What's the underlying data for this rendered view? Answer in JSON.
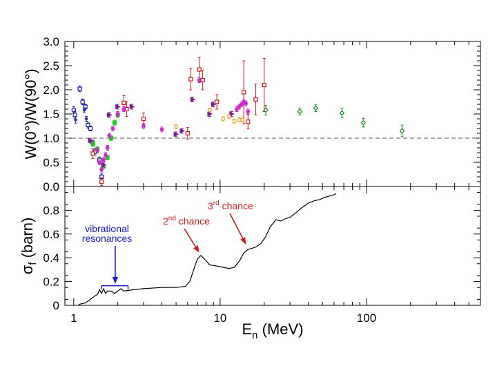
{
  "chart_data": [
    {
      "type": "scatter",
      "panel": "top",
      "xscale": "log",
      "xlim": [
        0.87,
        600
      ],
      "ylim": [
        0,
        3.0
      ],
      "ylabel": "W(0°)/W(90°)",
      "yticks": [
        {
          "value": 0.0,
          "label": "0.0"
        },
        {
          "value": 0.5,
          "label": "0.5"
        },
        {
          "value": 1.0,
          "label": "1.0"
        },
        {
          "value": 1.5,
          "label": "1.5"
        },
        {
          "value": 2.0,
          "label": "2.0"
        },
        {
          "value": 2.5,
          "label": "2.5"
        },
        {
          "value": 3.0,
          "label": "3.0"
        }
      ],
      "reference_line": {
        "y": 1.0,
        "style": "dashed"
      },
      "series": [
        {
          "name": "blue-squares",
          "color": "#1a1aa8",
          "marker": "square",
          "points": [
            {
              "x": 1.0,
              "y": 1.58,
              "err": 0.07
            },
            {
              "x": 1.02,
              "y": 1.48,
              "err": 0.08
            },
            {
              "x": 1.1,
              "y": 2.02,
              "err": 0.06
            },
            {
              "x": 1.15,
              "y": 1.75,
              "err": 0.06
            },
            {
              "x": 1.2,
              "y": 1.65,
              "err": 0.05
            },
            {
              "x": 1.25,
              "y": 1.27,
              "err": 0.06
            },
            {
              "x": 1.3,
              "y": 1.2,
              "err": 0.05
            },
            {
              "x": 1.35,
              "y": 0.9,
              "err": 0.06
            },
            {
              "x": 1.4,
              "y": 0.72,
              "err": 0.07
            },
            {
              "x": 1.5,
              "y": 0.55,
              "err": 0.06
            },
            {
              "x": 1.55,
              "y": 0.2,
              "err": 0.06
            }
          ]
        },
        {
          "name": "blue-dots",
          "color": "#2a2ab8",
          "marker": "dot",
          "points": [
            {
              "x": 1.03,
              "y": 1.38,
              "err": 0.07
            },
            {
              "x": 1.18,
              "y": 1.58,
              "err": 0.05
            },
            {
              "x": 1.22,
              "y": 1.4,
              "err": 0.05
            }
          ]
        },
        {
          "name": "red-squares",
          "color": "#d01818",
          "marker": "square",
          "points": [
            {
              "x": 1.35,
              "y": 0.68,
              "err": 0.1
            },
            {
              "x": 1.55,
              "y": 0.1,
              "err": 0.08
            },
            {
              "x": 2.2,
              "y": 1.73,
              "err": 0.15
            },
            {
              "x": 2.3,
              "y": 1.6,
              "err": 0.15
            },
            {
              "x": 3.0,
              "y": 1.4,
              "err": 0.12
            },
            {
              "x": 6.0,
              "y": 1.1,
              "err": 0.12
            },
            {
              "x": 6.3,
              "y": 2.22,
              "err": 0.22
            },
            {
              "x": 7.2,
              "y": 2.42,
              "err": 0.25
            },
            {
              "x": 7.6,
              "y": 2.2,
              "err": 0.2
            },
            {
              "x": 9.5,
              "y": 1.75,
              "err": 0.15
            },
            {
              "x": 14.5,
              "y": 1.95,
              "err": 0.65
            },
            {
              "x": 15.5,
              "y": 1.34,
              "err": 0.15
            },
            {
              "x": 17.5,
              "y": 1.8,
              "err": 0.32
            },
            {
              "x": 20.0,
              "y": 2.1,
              "err": 0.55
            }
          ]
        },
        {
          "name": "green-filled",
          "color": "#22cc22",
          "marker": "filled-square",
          "points": [
            {
              "x": 1.35,
              "y": 0.88,
              "err": 0.05
            },
            {
              "x": 1.45,
              "y": 0.77,
              "err": 0.05
            },
            {
              "x": 1.6,
              "y": 0.42,
              "err": 0.05
            },
            {
              "x": 1.7,
              "y": 0.6,
              "err": 0.05
            },
            {
              "x": 1.8,
              "y": 1.0,
              "err": 0.05
            },
            {
              "x": 1.9,
              "y": 1.32,
              "err": 0.05
            },
            {
              "x": 2.0,
              "y": 1.48,
              "err": 0.05
            }
          ]
        },
        {
          "name": "magenta-stars",
          "color": "#cc22cc",
          "marker": "star",
          "points": [
            {
              "x": 1.45,
              "y": 0.75,
              "err": 0.05
            },
            {
              "x": 1.5,
              "y": 0.5,
              "err": 0.05
            },
            {
              "x": 1.55,
              "y": 0.35,
              "err": 0.05
            },
            {
              "x": 1.6,
              "y": 0.55,
              "err": 0.05
            },
            {
              "x": 1.65,
              "y": 0.65,
              "err": 0.05
            },
            {
              "x": 1.7,
              "y": 0.8,
              "err": 0.05
            },
            {
              "x": 1.75,
              "y": 1.05,
              "err": 0.05
            },
            {
              "x": 1.85,
              "y": 1.2,
              "err": 0.05
            },
            {
              "x": 2.0,
              "y": 1.5,
              "err": 0.05
            },
            {
              "x": 2.2,
              "y": 1.6,
              "err": 0.05
            },
            {
              "x": 3.0,
              "y": 1.25,
              "err": 0.05
            },
            {
              "x": 4.0,
              "y": 1.18,
              "err": 0.05
            },
            {
              "x": 7.2,
              "y": 2.2,
              "err": 0.05
            },
            {
              "x": 13.0,
              "y": 1.6,
              "err": 0.05
            },
            {
              "x": 13.5,
              "y": 1.65,
              "err": 0.05
            },
            {
              "x": 14.0,
              "y": 1.7,
              "err": 0.05
            },
            {
              "x": 14.5,
              "y": 1.75,
              "err": 0.05
            },
            {
              "x": 15.0,
              "y": 1.72,
              "err": 0.05
            },
            {
              "x": 15.5,
              "y": 1.55,
              "err": 0.05
            }
          ]
        },
        {
          "name": "purple-triangles",
          "color": "#7a1a8a",
          "marker": "triangle",
          "points": [
            {
              "x": 1.3,
              "y": 0.95,
              "err": 0.05
            },
            {
              "x": 1.6,
              "y": 0.45,
              "err": 0.05
            },
            {
              "x": 1.75,
              "y": 1.48,
              "err": 0.05
            },
            {
              "x": 2.0,
              "y": 1.65,
              "err": 0.05
            },
            {
              "x": 2.5,
              "y": 1.65,
              "err": 0.05
            },
            {
              "x": 5.0,
              "y": 1.08,
              "err": 0.05
            },
            {
              "x": 5.5,
              "y": 1.15,
              "err": 0.05
            },
            {
              "x": 6.5,
              "y": 1.8,
              "err": 0.05
            },
            {
              "x": 8.5,
              "y": 1.5,
              "err": 0.05
            },
            {
              "x": 9.0,
              "y": 1.7,
              "err": 0.05
            },
            {
              "x": 12.0,
              "y": 1.5,
              "err": 0.05
            }
          ]
        },
        {
          "name": "orange-circles",
          "color": "#f0a020",
          "marker": "circle",
          "points": [
            {
              "x": 5.0,
              "y": 1.24,
              "err": 0.04
            },
            {
              "x": 8.5,
              "y": 1.58,
              "err": 0.04
            },
            {
              "x": 10.5,
              "y": 1.4,
              "err": 0.04
            },
            {
              "x": 11.5,
              "y": 1.45,
              "err": 0.04
            },
            {
              "x": 12.5,
              "y": 1.35,
              "err": 0.04
            },
            {
              "x": 13.5,
              "y": 1.38,
              "err": 0.04
            },
            {
              "x": 14.2,
              "y": 1.38,
              "err": 0.04
            }
          ]
        },
        {
          "name": "dark-green-diamonds",
          "color": "#1a8a1a",
          "marker": "diamond",
          "points": [
            {
              "x": 20.5,
              "y": 1.58,
              "err": 0.1
            },
            {
              "x": 35.0,
              "y": 1.55,
              "err": 0.07
            },
            {
              "x": 45.0,
              "y": 1.62,
              "err": 0.07
            },
            {
              "x": 68.0,
              "y": 1.52,
              "err": 0.09
            },
            {
              "x": 95.0,
              "y": 1.32,
              "err": 0.09
            },
            {
              "x": 175.0,
              "y": 1.15,
              "err": 0.12
            }
          ]
        }
      ]
    },
    {
      "type": "line",
      "panel": "bottom",
      "xscale": "log",
      "xlim": [
        0.87,
        600
      ],
      "ylim": [
        0,
        1.0
      ],
      "xlabel": "En (MeV)",
      "xlabel_main": "E",
      "xlabel_sub": "n",
      "xlabel_unit": " (MeV)",
      "ylabel": "σf (barn)",
      "ylabel_main": "σ",
      "ylabel_sub": "f",
      "ylabel_unit": " (barn)",
      "yticks": [
        {
          "value": 0.0,
          "label": "0"
        },
        {
          "value": 0.2,
          "label": "0.2"
        },
        {
          "value": 0.4,
          "label": "0.4"
        },
        {
          "value": 0.6,
          "label": "0.6"
        },
        {
          "value": 0.8,
          "label": "0.8"
        }
      ],
      "xticks": [
        {
          "value": 1,
          "label": "1"
        },
        {
          "value": 10,
          "label": "10"
        },
        {
          "value": 100,
          "label": "100"
        }
      ],
      "series": [
        {
          "name": "fission cross section",
          "color": "#000000",
          "points": [
            [
              1.07,
              0.0
            ],
            [
              1.1,
              0.01
            ],
            [
              1.2,
              0.02
            ],
            [
              1.3,
              0.05
            ],
            [
              1.4,
              0.08
            ],
            [
              1.45,
              0.09
            ],
            [
              1.5,
              0.13
            ],
            [
              1.55,
              0.1
            ],
            [
              1.6,
              0.14
            ],
            [
              1.65,
              0.1
            ],
            [
              1.7,
              0.12
            ],
            [
              1.8,
              0.12
            ],
            [
              1.9,
              0.1
            ],
            [
              2.0,
              0.12
            ],
            [
              2.1,
              0.14
            ],
            [
              2.2,
              0.12
            ],
            [
              2.5,
              0.13
            ],
            [
              3.0,
              0.14
            ],
            [
              4.0,
              0.15
            ],
            [
              5.0,
              0.15
            ],
            [
              5.8,
              0.16
            ],
            [
              6.2,
              0.2
            ],
            [
              6.6,
              0.3
            ],
            [
              7.0,
              0.39
            ],
            [
              7.4,
              0.42
            ],
            [
              7.8,
              0.39
            ],
            [
              8.5,
              0.34
            ],
            [
              9.5,
              0.33
            ],
            [
              10.5,
              0.32
            ],
            [
              11.5,
              0.31
            ],
            [
              12.5,
              0.32
            ],
            [
              13.5,
              0.37
            ],
            [
              14.5,
              0.44
            ],
            [
              15.5,
              0.47
            ],
            [
              16.5,
              0.48
            ],
            [
              17.5,
              0.49
            ],
            [
              19.0,
              0.52
            ],
            [
              20.5,
              0.58
            ],
            [
              22.0,
              0.66
            ],
            [
              24.0,
              0.72
            ],
            [
              26.0,
              0.71
            ],
            [
              28.0,
              0.73
            ],
            [
              30.0,
              0.74
            ],
            [
              33.0,
              0.78
            ],
            [
              36.0,
              0.82
            ],
            [
              40.0,
              0.86
            ],
            [
              44.0,
              0.88
            ],
            [
              48.0,
              0.89
            ],
            [
              52.0,
              0.91
            ],
            [
              56.0,
              0.92
            ],
            [
              60.0,
              0.93
            ],
            [
              62.0,
              0.94
            ]
          ]
        }
      ],
      "annotations": [
        {
          "id": "vibrational",
          "line1": "vibrational",
          "line2": "resonances",
          "color": "#1a1acc",
          "arrow_x": 1.92,
          "arrow_y": 0.18,
          "bracket_x": [
            1.55,
            2.35
          ],
          "bracket_y": 0.165
        },
        {
          "id": "second_chance",
          "sup": "nd",
          "main": "2",
          "suffix": " chance",
          "color": "#cc1a1a",
          "arrow_x": 7.2,
          "arrow_y": 0.42
        },
        {
          "id": "third_chance",
          "sup": "rd",
          "main": "3",
          "suffix": " chance",
          "color": "#cc1a1a",
          "arrow_x": 15.0,
          "arrow_y": 0.49
        }
      ]
    }
  ]
}
